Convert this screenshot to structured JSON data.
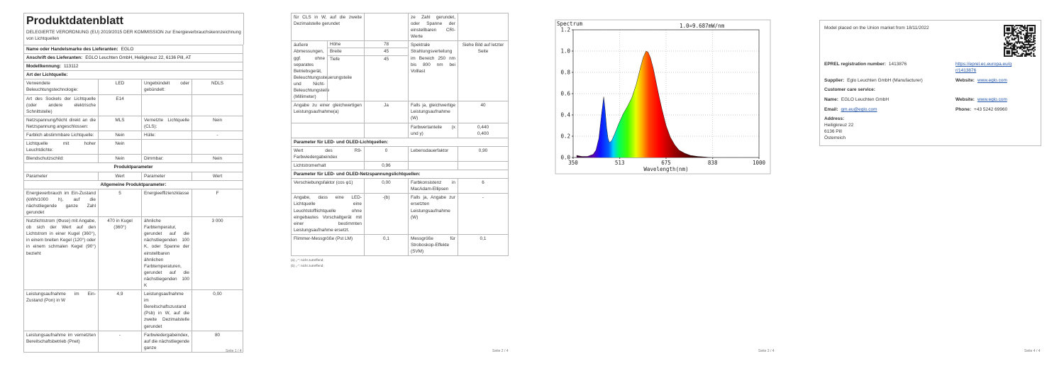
{
  "page1": {
    "title": "Produktdatenblatt",
    "subtitle": "DELEGIERTE VERORDNUNG (EU) 2019/2015 DER KOMMISSION zur Energieverbrauchskennzeichnung von Lichtquellen",
    "table": [
      {
        "label": "Name oder Handelsmarke des Lieferanten:",
        "value": "EGLO"
      },
      {
        "label": "Anschrift des Lieferanten:",
        "value": "EGLO Leuchten GmbH, Heiligkreuz 22, 6136 Pill, AT"
      },
      {
        "label": "Modellkennung:",
        "value": "113112"
      },
      {
        "heading": "Art der Lichtquelle:"
      },
      {
        "cells": [
          "Verwendete Beleuchtungstechnologie:",
          "LED",
          "Ungebündelt oder gebündelt:",
          "NDLS"
        ]
      },
      {
        "cells": [
          "Art des Sockels der Lichtquelle (oder andere elektrische Schnittstelle)",
          "E14",
          null,
          null
        ]
      },
      {
        "cells": [
          "Netzspannung/Nicht direkt an die Netzspannung angeschlossen:",
          "MLS",
          "Vernetzte Lichtquelle (CLS):",
          "Nein"
        ]
      },
      {
        "cells": [
          "Farblich abstimmbare Lichtquelle:",
          "Nein",
          "Hülle:",
          "-"
        ]
      },
      {
        "cells": [
          "Lichtquelle mit hoher Leuchtdichte:",
          "Nein",
          null,
          null
        ]
      },
      {
        "cells": [
          "Blendschutzschild:",
          "Nein",
          "Dimmbar:",
          "Nein"
        ]
      },
      {
        "title": "Produktparameter"
      },
      {
        "cells": [
          "Parameter",
          "Wert",
          "Parameter",
          "Wert"
        ]
      },
      {
        "title": "Allgemeine Produktparameter:"
      },
      {
        "cells": [
          "Energieverbrauch im Ein-Zustand (kWh/1000 h), auf die nächstliegende ganze Zahl gerundet",
          5,
          "Energieeffizienzklasse",
          "F"
        ]
      },
      {
        "cells": [
          "Nutzlichtstrom (Φuse) mit Angabe, ob sich der Wert auf den Lichtstrom in einer Kugel (360°), in einem breiten Kegel (120°) oder in einem schmalen Kegel (90°) bezieht",
          "470 in Kugel (360°)",
          "ähnliche Farbtemperatur, gerundet auf die nächstliegenden 100 K, oder Spanne der einstellbaren ähnlichen Farbtemperaturen, gerundet auf die nächstliegenden 100 K",
          "3 000"
        ]
      },
      {
        "cells": [
          "Leistungsaufnahme im Ein-Zustand (Pon) in W",
          "4,9",
          "Leistungsaufnahme im Bereitschaftszustand (Psb) in W, auf die zweite Dezimalstelle gerundet",
          "0,00"
        ]
      },
      {
        "cells": [
          "Leistungsaufnahme im vernetzten Bereitschaftsbetrieb (Pnet)",
          "-",
          "Farbwiedergabeindex, auf die nächstliegende ganze",
          80
        ]
      }
    ],
    "footer": "Seite 1 / 4"
  },
  "page2": {
    "table": [
      {
        "cells": [
          "für CLS in W, auf die zweite Dezimalstelle gerundet",
          null,
          "ze Zahl gerundet, oder Spanne der einstellbaren CRI-Werte",
          null
        ]
      },
      {
        "cells": [
          "äußere Abmessungen, ggf. ohne separates Betriebsgerät, Beleuchtungssteuerungsteile und Nicht-Beleuchtungsteile (Millimeter)",
          null,
          "Spektrale Strahlungsverteilung im Bereich 250 nm bis 800 nm bei Volllast",
          "Siehe Bild auf letzter Seite"
        ],
        "dims": [
          {
            "label": "Höhe",
            "value": 78
          },
          {
            "label": "Breite",
            "value": 45
          },
          {
            "label": "Tiefe",
            "value": 45
          }
        ]
      },
      {
        "cells": [
          "Angabe zu einer gleichwertigen Leistungsaufnahme(a)",
          "Ja",
          "Falls ja, gleichwertige Leistungsaufnahme (W)",
          40
        ]
      },
      {
        "cells": [
          null,
          null,
          "Farbwertanteile (x und y)",
          [
            "0,440",
            "0,400"
          ]
        ]
      },
      {
        "heading": "Parameter für LED- und OLED-Lichtquellen:"
      },
      {
        "cells": [
          "Wert des R9-Farbwiedergabeindex",
          0,
          "Lebensdauerfaktor",
          "0,90"
        ]
      },
      {
        "cells": [
          "Lichtstromerhalt",
          "0,96",
          null,
          null
        ]
      },
      {
        "heading": "Parameter für LED- und OLED-Netzspannungslichtquellen:"
      },
      {
        "cells": [
          "Verschiebungsfaktor (cos φ1)",
          "0,00",
          "Farbkonsistenz in MacAdam-Ellipsen",
          6
        ]
      },
      {
        "cells": [
          "Angabe, dass eine LED-Lichtquelle eine Leuchtstofflichtquelle ohne eingebautes Vorschaltgerät mit einer bestimmten Leistungsaufnahme ersetzt.",
          "-(b)",
          "Falls ja, Angabe zur ersetzten Leistungsaufnahme (W)",
          "-"
        ]
      },
      {
        "cells": [
          "Flimmer-Messgröße (Pst LM)",
          "0,1",
          "Messgröße für Stroboskop-Effekte (SVM)",
          "0,1"
        ]
      }
    ],
    "footnotes": [
      "(a) „-“: nicht zutreffend;",
      "(b) „-“: nicht zutreffend;"
    ],
    "footer": "Seite 2 / 4"
  },
  "page3": {
    "chart_data": {
      "type": "area",
      "title": "Spectrum",
      "annotation": "1.0=9.687mW/nm",
      "x_label": "Wavelength(nm)",
      "xlim": [
        350,
        1000
      ],
      "xticks": [
        350,
        513,
        675,
        838,
        1000
      ],
      "ylim": [
        0,
        1.2
      ],
      "yticks": [
        {
          "value": 0,
          "label": "0.0"
        },
        {
          "value": 0.2,
          "label": "0.2"
        },
        {
          "value": 0.4,
          "label": "0.4"
        },
        {
          "value": 0.6,
          "label": "0.6"
        },
        {
          "value": 0.8,
          "label": "0.8"
        },
        {
          "value": 1,
          "label": "1.0"
        },
        {
          "value": 1.2,
          "label": "1.2"
        }
      ],
      "grid": true,
      "x": [
        362,
        380,
        400,
        420,
        430,
        440,
        450,
        457,
        462,
        467,
        472,
        477,
        485,
        495,
        510,
        525,
        540,
        555,
        570,
        585,
        595,
        605,
        612,
        620,
        630,
        640,
        650,
        660,
        675,
        690,
        705,
        720,
        740,
        760,
        785,
        810,
        830
      ],
      "values": [
        0.02,
        0.01,
        0.01,
        0.03,
        0.07,
        0.18,
        0.42,
        0.57,
        0.44,
        0.28,
        0.18,
        0.14,
        0.16,
        0.22,
        0.32,
        0.41,
        0.48,
        0.56,
        0.68,
        0.84,
        0.94,
        1.0,
        0.99,
        0.94,
        0.84,
        0.71,
        0.58,
        0.46,
        0.3,
        0.19,
        0.12,
        0.07,
        0.04,
        0.02,
        0.01,
        0.005,
        0
      ]
    },
    "footer": "Seite 3 / 4"
  },
  "page4": {
    "market": "Model placed on the Union market from 18/11/2022",
    "eprel": {
      "label": "EPREL registration number:",
      "value": 1413876
    },
    "eprel_link": "https://eprel.ec.europa.eu/qr/1413876",
    "supplier": {
      "label": "Supplier:",
      "value": "Eglo Leuchten GmbH (Manufacturer)"
    },
    "supplier_website": {
      "label": "Website:",
      "value": "www.eglo.com"
    },
    "customer_care": "Customer care service:",
    "name": {
      "label": "Name:",
      "value": "EGLO Leuchten GmbH"
    },
    "website": {
      "label": "Website:",
      "value": "www.eglo.com"
    },
    "email": {
      "label": "Email:",
      "value": "qm.eu@eglo.com"
    },
    "phone": {
      "label": "Phone:",
      "value": "+43 5242 69960"
    },
    "address": {
      "label": "Address:",
      "lines": [
        "Heiligkreuz 22",
        "6136 Pill",
        "Österreich"
      ]
    },
    "footer": "Seite 4 / 4"
  }
}
